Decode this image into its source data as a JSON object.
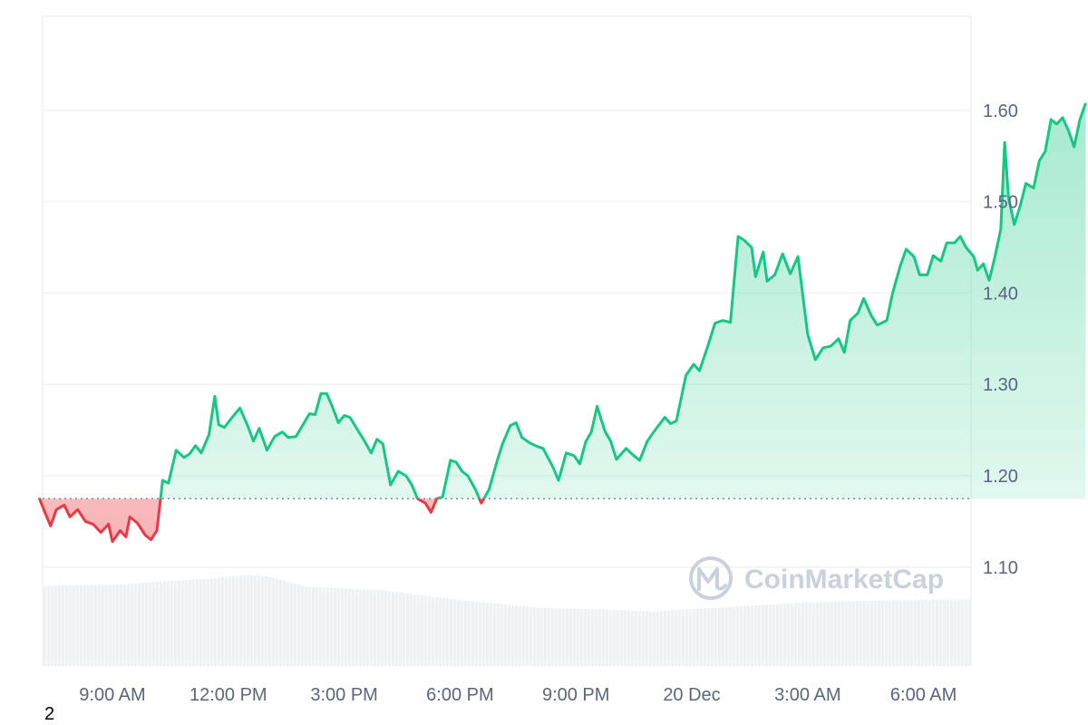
{
  "chart_data": {
    "type": "area",
    "title": "",
    "xlabel": "",
    "ylabel": "",
    "baseline": 1.175,
    "ylim": [
      1.0,
      1.7
    ],
    "y_ticks": [
      "1.10",
      "1.20",
      "1.30",
      "1.40",
      "1.50",
      "1.60"
    ],
    "y_tick_values": [
      1.1,
      1.2,
      1.3,
      1.4,
      1.5,
      1.6
    ],
    "x_ticks": [
      "9:00 AM",
      "12:00 PM",
      "3:00 PM",
      "6:00 PM",
      "9:00 PM",
      "20 Dec",
      "3:00 AM",
      "6:00 AM"
    ],
    "x_tick_hours": [
      9,
      12,
      15,
      18,
      21,
      24,
      27,
      30
    ],
    "x_range_hours": [
      7.1,
      31.3
    ],
    "colors": {
      "up": "#16c784",
      "down": "#ea3943",
      "volume": "#eff2f5",
      "grid": "#eff2f5",
      "baseline": "#808a9d"
    },
    "price": [
      [
        7.1,
        1.176
      ],
      [
        7.25,
        1.16
      ],
      [
        7.4,
        1.145
      ],
      [
        7.55,
        1.163
      ],
      [
        7.75,
        1.168
      ],
      [
        7.9,
        1.155
      ],
      [
        8.1,
        1.163
      ],
      [
        8.3,
        1.15
      ],
      [
        8.5,
        1.147
      ],
      [
        8.7,
        1.138
      ],
      [
        8.9,
        1.147
      ],
      [
        9.0,
        1.128
      ],
      [
        9.2,
        1.14
      ],
      [
        9.35,
        1.133
      ],
      [
        9.45,
        1.155
      ],
      [
        9.65,
        1.148
      ],
      [
        9.85,
        1.135
      ],
      [
        10.0,
        1.13
      ],
      [
        10.15,
        1.14
      ],
      [
        10.3,
        1.195
      ],
      [
        10.45,
        1.192
      ],
      [
        10.65,
        1.228
      ],
      [
        10.85,
        1.22
      ],
      [
        11.0,
        1.224
      ],
      [
        11.15,
        1.233
      ],
      [
        11.3,
        1.225
      ],
      [
        11.5,
        1.245
      ],
      [
        11.65,
        1.287
      ],
      [
        11.75,
        1.256
      ],
      [
        11.9,
        1.253
      ],
      [
        12.1,
        1.264
      ],
      [
        12.3,
        1.274
      ],
      [
        12.5,
        1.255
      ],
      [
        12.65,
        1.238
      ],
      [
        12.8,
        1.252
      ],
      [
        13.0,
        1.228
      ],
      [
        13.2,
        1.243
      ],
      [
        13.4,
        1.248
      ],
      [
        13.55,
        1.242
      ],
      [
        13.75,
        1.243
      ],
      [
        13.95,
        1.257
      ],
      [
        14.1,
        1.268
      ],
      [
        14.25,
        1.267
      ],
      [
        14.4,
        1.29
      ],
      [
        14.55,
        1.29
      ],
      [
        14.7,
        1.275
      ],
      [
        14.85,
        1.258
      ],
      [
        15.0,
        1.266
      ],
      [
        15.15,
        1.264
      ],
      [
        15.35,
        1.25
      ],
      [
        15.5,
        1.24
      ],
      [
        15.7,
        1.225
      ],
      [
        15.85,
        1.24
      ],
      [
        16.0,
        1.235
      ],
      [
        16.2,
        1.19
      ],
      [
        16.4,
        1.205
      ],
      [
        16.6,
        1.2
      ],
      [
        16.75,
        1.19
      ],
      [
        16.9,
        1.175
      ],
      [
        17.1,
        1.17
      ],
      [
        17.25,
        1.16
      ],
      [
        17.4,
        1.175
      ],
      [
        17.55,
        1.177
      ],
      [
        17.75,
        1.217
      ],
      [
        17.9,
        1.215
      ],
      [
        18.05,
        1.205
      ],
      [
        18.2,
        1.2
      ],
      [
        18.4,
        1.185
      ],
      [
        18.55,
        1.17
      ],
      [
        18.75,
        1.185
      ],
      [
        18.95,
        1.215
      ],
      [
        19.1,
        1.235
      ],
      [
        19.3,
        1.255
      ],
      [
        19.45,
        1.258
      ],
      [
        19.6,
        1.242
      ],
      [
        19.8,
        1.236
      ],
      [
        20.0,
        1.232
      ],
      [
        20.15,
        1.23
      ],
      [
        20.4,
        1.21
      ],
      [
        20.55,
        1.195
      ],
      [
        20.75,
        1.225
      ],
      [
        20.95,
        1.222
      ],
      [
        21.1,
        1.213
      ],
      [
        21.25,
        1.237
      ],
      [
        21.4,
        1.248
      ],
      [
        21.55,
        1.276
      ],
      [
        21.75,
        1.249
      ],
      [
        21.9,
        1.238
      ],
      [
        22.05,
        1.218
      ],
      [
        22.3,
        1.23
      ],
      [
        22.5,
        1.222
      ],
      [
        22.65,
        1.217
      ],
      [
        22.85,
        1.238
      ],
      [
        23.05,
        1.25
      ],
      [
        23.3,
        1.264
      ],
      [
        23.45,
        1.257
      ],
      [
        23.6,
        1.26
      ],
      [
        23.85,
        1.31
      ],
      [
        24.05,
        1.322
      ],
      [
        24.2,
        1.315
      ],
      [
        24.4,
        1.34
      ],
      [
        24.6,
        1.367
      ],
      [
        24.8,
        1.37
      ],
      [
        25.0,
        1.368
      ],
      [
        25.2,
        1.462
      ],
      [
        25.35,
        1.458
      ],
      [
        25.55,
        1.45
      ],
      [
        25.65,
        1.418
      ],
      [
        25.85,
        1.445
      ],
      [
        25.95,
        1.413
      ],
      [
        26.15,
        1.42
      ],
      [
        26.35,
        1.443
      ],
      [
        26.55,
        1.421
      ],
      [
        26.75,
        1.44
      ],
      [
        27.0,
        1.355
      ],
      [
        27.2,
        1.327
      ],
      [
        27.4,
        1.34
      ],
      [
        27.6,
        1.342
      ],
      [
        27.8,
        1.35
      ],
      [
        27.95,
        1.335
      ],
      [
        28.1,
        1.37
      ],
      [
        28.3,
        1.378
      ],
      [
        28.45,
        1.394
      ],
      [
        28.65,
        1.375
      ],
      [
        28.8,
        1.365
      ],
      [
        29.05,
        1.37
      ],
      [
        29.2,
        1.4
      ],
      [
        29.4,
        1.43
      ],
      [
        29.55,
        1.448
      ],
      [
        29.75,
        1.44
      ],
      [
        29.9,
        1.42
      ],
      [
        30.1,
        1.42
      ],
      [
        30.25,
        1.441
      ],
      [
        30.45,
        1.435
      ],
      [
        30.6,
        1.455
      ],
      [
        30.8,
        1.455
      ],
      [
        30.95,
        1.462
      ],
      [
        31.1,
        1.45
      ],
      [
        31.3,
        1.44
      ]
    ],
    "price_extra": [
      [
        31.4,
        1.425
      ],
      [
        31.55,
        1.432
      ],
      [
        31.7,
        1.414
      ],
      [
        31.85,
        1.44
      ],
      [
        32.0,
        1.47
      ],
      [
        32.1,
        1.565
      ],
      [
        32.2,
        1.505
      ],
      [
        32.35,
        1.475
      ],
      [
        32.5,
        1.495
      ],
      [
        32.65,
        1.52
      ],
      [
        32.85,
        1.515
      ],
      [
        33.0,
        1.545
      ],
      [
        33.15,
        1.555
      ],
      [
        33.3,
        1.59
      ],
      [
        33.45,
        1.585
      ],
      [
        33.6,
        1.592
      ],
      [
        33.75,
        1.578
      ],
      [
        33.9,
        1.56
      ],
      [
        34.05,
        1.59
      ],
      [
        34.2,
        1.608
      ]
    ],
    "volume": [
      [
        7.1,
        0.088
      ],
      [
        9.0,
        0.089
      ],
      [
        10.0,
        0.092
      ],
      [
        11.5,
        0.096
      ],
      [
        12.5,
        0.1
      ],
      [
        13.0,
        0.098
      ],
      [
        14.0,
        0.087
      ],
      [
        16.0,
        0.083
      ],
      [
        18.0,
        0.072
      ],
      [
        20.0,
        0.064
      ],
      [
        23.0,
        0.06
      ],
      [
        25.0,
        0.065
      ],
      [
        27.0,
        0.07
      ],
      [
        29.0,
        0.072
      ],
      [
        31.0,
        0.073
      ],
      [
        34.2,
        0.076
      ]
    ]
  },
  "watermark": {
    "text": "CoinMarketCap",
    "icon": "coinmarketcap-logo-icon"
  },
  "footnote": "2"
}
